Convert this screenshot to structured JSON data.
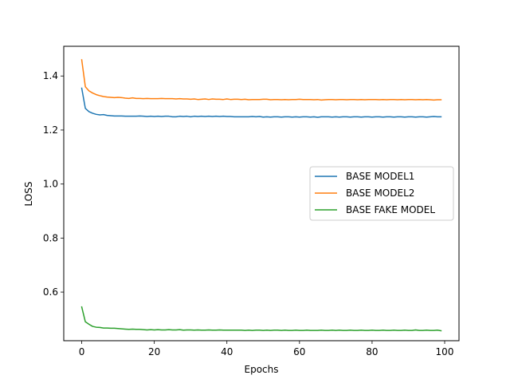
{
  "chart_data": {
    "type": "line",
    "title": "",
    "xlabel": "Epochs",
    "ylabel": "LOSS",
    "xlim": [
      -4.95,
      103.95
    ],
    "ylim": [
      0.42,
      1.51
    ],
    "xticks": [
      0,
      20,
      40,
      60,
      80,
      100
    ],
    "yticks": [
      0.6,
      0.8,
      1.0,
      1.2,
      1.4
    ],
    "xtick_labels": [
      "0",
      "20",
      "40",
      "60",
      "80",
      "100"
    ],
    "ytick_labels": [
      "0.6",
      "0.8",
      "1.0",
      "1.2",
      "1.4"
    ],
    "grid": false,
    "legend_position": "center-right",
    "series": [
      {
        "name": "BASE MODEL1",
        "color": "#1f77b4",
        "x": [
          0,
          1,
          2,
          3,
          4,
          5,
          6,
          7,
          8,
          9,
          10,
          11,
          12,
          13,
          14,
          15,
          16,
          17,
          18,
          19,
          20,
          21,
          22,
          23,
          24,
          25,
          26,
          27,
          28,
          29,
          30,
          31,
          32,
          33,
          34,
          35,
          36,
          37,
          38,
          39,
          40,
          41,
          42,
          43,
          44,
          45,
          46,
          47,
          48,
          49,
          50,
          51,
          52,
          53,
          54,
          55,
          56,
          57,
          58,
          59,
          60,
          61,
          62,
          63,
          64,
          65,
          66,
          67,
          68,
          69,
          70,
          71,
          72,
          73,
          74,
          75,
          76,
          77,
          78,
          79,
          80,
          81,
          82,
          83,
          84,
          85,
          86,
          87,
          88,
          89,
          90,
          91,
          92,
          93,
          94,
          95,
          96,
          97,
          98,
          99
        ],
        "values": [
          1.355,
          1.28,
          1.268,
          1.262,
          1.258,
          1.256,
          1.257,
          1.254,
          1.253,
          1.252,
          1.252,
          1.252,
          1.251,
          1.251,
          1.251,
          1.251,
          1.252,
          1.251,
          1.25,
          1.251,
          1.25,
          1.251,
          1.25,
          1.251,
          1.251,
          1.249,
          1.249,
          1.251,
          1.25,
          1.251,
          1.249,
          1.251,
          1.25,
          1.251,
          1.25,
          1.251,
          1.25,
          1.251,
          1.25,
          1.251,
          1.25,
          1.25,
          1.249,
          1.249,
          1.249,
          1.249,
          1.249,
          1.25,
          1.249,
          1.25,
          1.248,
          1.249,
          1.248,
          1.249,
          1.249,
          1.248,
          1.249,
          1.249,
          1.248,
          1.249,
          1.248,
          1.249,
          1.249,
          1.248,
          1.249,
          1.247,
          1.249,
          1.249,
          1.249,
          1.248,
          1.249,
          1.248,
          1.249,
          1.249,
          1.248,
          1.249,
          1.249,
          1.248,
          1.249,
          1.249,
          1.248,
          1.249,
          1.249,
          1.248,
          1.249,
          1.249,
          1.248,
          1.249,
          1.249,
          1.248,
          1.249,
          1.249,
          1.248,
          1.249,
          1.249,
          1.248,
          1.249,
          1.25,
          1.249,
          1.249
        ]
      },
      {
        "name": "BASE MODEL2",
        "color": "#ff7f0e",
        "x": [
          0,
          1,
          2,
          3,
          4,
          5,
          6,
          7,
          8,
          9,
          10,
          11,
          12,
          13,
          14,
          15,
          16,
          17,
          18,
          19,
          20,
          21,
          22,
          23,
          24,
          25,
          26,
          27,
          28,
          29,
          30,
          31,
          32,
          33,
          34,
          35,
          36,
          37,
          38,
          39,
          40,
          41,
          42,
          43,
          44,
          45,
          46,
          47,
          48,
          49,
          50,
          51,
          52,
          53,
          54,
          55,
          56,
          57,
          58,
          59,
          60,
          61,
          62,
          63,
          64,
          65,
          66,
          67,
          68,
          69,
          70,
          71,
          72,
          73,
          74,
          75,
          76,
          77,
          78,
          79,
          80,
          81,
          82,
          83,
          84,
          85,
          86,
          87,
          88,
          89,
          90,
          91,
          92,
          93,
          94,
          95,
          96,
          97,
          98,
          99
        ],
        "values": [
          1.46,
          1.36,
          1.345,
          1.337,
          1.331,
          1.327,
          1.324,
          1.322,
          1.321,
          1.32,
          1.321,
          1.32,
          1.318,
          1.317,
          1.319,
          1.317,
          1.317,
          1.316,
          1.317,
          1.316,
          1.316,
          1.316,
          1.317,
          1.316,
          1.316,
          1.316,
          1.315,
          1.316,
          1.315,
          1.315,
          1.314,
          1.315,
          1.313,
          1.314,
          1.315,
          1.313,
          1.315,
          1.314,
          1.314,
          1.313,
          1.315,
          1.313,
          1.314,
          1.314,
          1.313,
          1.314,
          1.312,
          1.313,
          1.313,
          1.313,
          1.314,
          1.314,
          1.312,
          1.313,
          1.313,
          1.312,
          1.313,
          1.312,
          1.313,
          1.313,
          1.314,
          1.313,
          1.313,
          1.313,
          1.312,
          1.313,
          1.311,
          1.312,
          1.313,
          1.313,
          1.312,
          1.313,
          1.313,
          1.312,
          1.313,
          1.313,
          1.312,
          1.313,
          1.312,
          1.313,
          1.313,
          1.313,
          1.312,
          1.313,
          1.312,
          1.313,
          1.313,
          1.312,
          1.313,
          1.312,
          1.313,
          1.313,
          1.312,
          1.313,
          1.312,
          1.313,
          1.312,
          1.311,
          1.312,
          1.312
        ]
      },
      {
        "name": "BASE FAKE MODEL",
        "color": "#2ca02c",
        "x": [
          0,
          1,
          2,
          3,
          4,
          5,
          6,
          7,
          8,
          9,
          10,
          11,
          12,
          13,
          14,
          15,
          16,
          17,
          18,
          19,
          20,
          21,
          22,
          23,
          24,
          25,
          26,
          27,
          28,
          29,
          30,
          31,
          32,
          33,
          34,
          35,
          36,
          37,
          38,
          39,
          40,
          41,
          42,
          43,
          44,
          45,
          46,
          47,
          48,
          49,
          50,
          51,
          52,
          53,
          54,
          55,
          56,
          57,
          58,
          59,
          60,
          61,
          62,
          63,
          64,
          65,
          66,
          67,
          68,
          69,
          70,
          71,
          72,
          73,
          74,
          75,
          76,
          77,
          78,
          79,
          80,
          81,
          82,
          83,
          84,
          85,
          86,
          87,
          88,
          89,
          90,
          91,
          92,
          93,
          94,
          95,
          96,
          97,
          98,
          99
        ],
        "values": [
          0.545,
          0.49,
          0.481,
          0.473,
          0.47,
          0.469,
          0.467,
          0.467,
          0.466,
          0.466,
          0.465,
          0.464,
          0.463,
          0.462,
          0.463,
          0.462,
          0.462,
          0.461,
          0.46,
          0.461,
          0.46,
          0.461,
          0.46,
          0.46,
          0.461,
          0.46,
          0.46,
          0.461,
          0.459,
          0.46,
          0.46,
          0.459,
          0.46,
          0.459,
          0.459,
          0.46,
          0.459,
          0.459,
          0.46,
          0.459,
          0.459,
          0.459,
          0.459,
          0.459,
          0.459,
          0.458,
          0.459,
          0.458,
          0.459,
          0.459,
          0.458,
          0.459,
          0.458,
          0.459,
          0.459,
          0.458,
          0.459,
          0.458,
          0.458,
          0.459,
          0.458,
          0.458,
          0.459,
          0.458,
          0.458,
          0.458,
          0.459,
          0.458,
          0.458,
          0.459,
          0.458,
          0.459,
          0.458,
          0.458,
          0.459,
          0.458,
          0.458,
          0.459,
          0.458,
          0.458,
          0.459,
          0.458,
          0.458,
          0.459,
          0.458,
          0.458,
          0.459,
          0.458,
          0.458,
          0.459,
          0.458,
          0.458,
          0.46,
          0.458,
          0.458,
          0.459,
          0.458,
          0.458,
          0.459,
          0.457
        ]
      }
    ]
  }
}
